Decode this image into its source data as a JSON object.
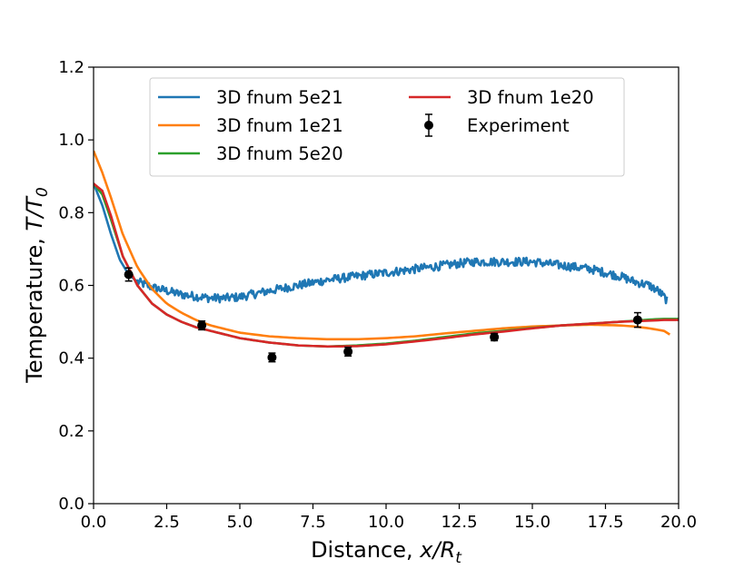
{
  "chart_data": {
    "type": "line",
    "title": "",
    "xlabel": "Distance, ",
    "xlabel_italic": "x/R",
    "xlabel_sub": "t",
    "ylabel": "Temperature, ",
    "ylabel_italic": "T/T",
    "ylabel_sub": "0",
    "xlim": [
      0.0,
      20.0
    ],
    "ylim": [
      0.0,
      1.2
    ],
    "xticks": [
      0.0,
      2.5,
      5.0,
      7.5,
      10.0,
      12.5,
      15.0,
      17.5,
      20.0
    ],
    "xtick_labels": [
      "0.0",
      "2.5",
      "5.0",
      "7.5",
      "10.0",
      "12.5",
      "15.0",
      "17.5",
      "20.0"
    ],
    "yticks": [
      0.0,
      0.2,
      0.4,
      0.6,
      0.8,
      1.0,
      1.2
    ],
    "ytick_labels": [
      "0.0",
      "0.2",
      "0.4",
      "0.6",
      "0.8",
      "1.0",
      "1.2"
    ],
    "grid": false,
    "legend_position": "top-center",
    "series": [
      {
        "name": "3D fnum 5e21",
        "color": "#1f77b4",
        "noise": 0.012,
        "x": [
          0.0,
          0.3,
          0.6,
          0.9,
          1.2,
          1.5,
          2.0,
          2.5,
          3.0,
          3.5,
          4.0,
          4.5,
          5.0,
          6.0,
          7.0,
          8.0,
          9.0,
          10.0,
          11.0,
          12.0,
          13.0,
          14.0,
          15.0,
          16.0,
          17.0,
          18.0,
          18.5,
          19.0,
          19.3,
          19.6
        ],
        "y": [
          0.88,
          0.82,
          0.74,
          0.67,
          0.63,
          0.61,
          0.595,
          0.585,
          0.575,
          0.57,
          0.565,
          0.565,
          0.568,
          0.585,
          0.6,
          0.615,
          0.625,
          0.635,
          0.645,
          0.655,
          0.665,
          0.665,
          0.665,
          0.655,
          0.645,
          0.625,
          0.61,
          0.6,
          0.585,
          0.56
        ]
      },
      {
        "name": "3D fnum 1e21",
        "color": "#ff7f0e",
        "noise": 0.0,
        "x": [
          0.0,
          0.3,
          0.6,
          1.0,
          1.5,
          2.0,
          2.5,
          3.0,
          3.5,
          4.0,
          5.0,
          6.0,
          7.0,
          8.0,
          9.0,
          10.0,
          11.0,
          12.0,
          13.0,
          14.0,
          15.0,
          16.0,
          17.0,
          18.0,
          18.5,
          19.0,
          19.5,
          19.7
        ],
        "y": [
          0.97,
          0.91,
          0.84,
          0.74,
          0.65,
          0.59,
          0.55,
          0.525,
          0.505,
          0.49,
          0.47,
          0.46,
          0.455,
          0.452,
          0.452,
          0.455,
          0.46,
          0.468,
          0.475,
          0.482,
          0.487,
          0.49,
          0.492,
          0.49,
          0.487,
          0.482,
          0.475,
          0.465
        ]
      },
      {
        "name": "3D fnum 5e20",
        "color": "#2ca02c",
        "noise": 0.0,
        "x": [
          0.0,
          0.3,
          0.6,
          1.0,
          1.5,
          2.0,
          2.5,
          3.0,
          3.5,
          4.0,
          5.0,
          6.0,
          7.0,
          8.0,
          9.0,
          10.0,
          11.0,
          12.0,
          13.0,
          14.0,
          15.0,
          16.0,
          17.0,
          18.0,
          19.0,
          19.5,
          20.0
        ],
        "y": [
          0.88,
          0.85,
          0.78,
          0.68,
          0.6,
          0.55,
          0.52,
          0.5,
          0.485,
          0.475,
          0.455,
          0.443,
          0.435,
          0.432,
          0.435,
          0.44,
          0.448,
          0.458,
          0.468,
          0.475,
          0.483,
          0.49,
          0.495,
          0.5,
          0.506,
          0.508,
          0.508
        ]
      },
      {
        "name": "3D fnum 1e20",
        "color": "#d62728",
        "noise": 0.0,
        "x": [
          0.0,
          0.3,
          0.6,
          1.0,
          1.5,
          2.0,
          2.5,
          3.0,
          3.5,
          4.0,
          5.0,
          6.0,
          7.0,
          8.0,
          9.0,
          10.0,
          11.0,
          12.0,
          13.0,
          14.0,
          15.0,
          16.0,
          17.0,
          18.0,
          19.0,
          19.5,
          20.0
        ],
        "y": [
          0.88,
          0.86,
          0.79,
          0.68,
          0.6,
          0.55,
          0.52,
          0.5,
          0.485,
          0.475,
          0.455,
          0.443,
          0.435,
          0.432,
          0.433,
          0.438,
          0.446,
          0.455,
          0.465,
          0.473,
          0.482,
          0.49,
          0.495,
          0.5,
          0.503,
          0.505,
          0.505
        ]
      }
    ],
    "experiment": {
      "name": "Experiment",
      "color": "#000000",
      "x": [
        1.2,
        3.7,
        6.1,
        8.7,
        13.7,
        18.6
      ],
      "y": [
        0.63,
        0.49,
        0.402,
        0.418,
        0.458,
        0.505
      ],
      "err": [
        0.018,
        0.012,
        0.012,
        0.012,
        0.01,
        0.02
      ]
    },
    "legend_order": [
      [
        "3D fnum 5e21",
        "3D fnum 1e20"
      ],
      [
        "3D fnum 1e21",
        "Experiment"
      ],
      [
        "3D fnum 5e20"
      ]
    ]
  }
}
